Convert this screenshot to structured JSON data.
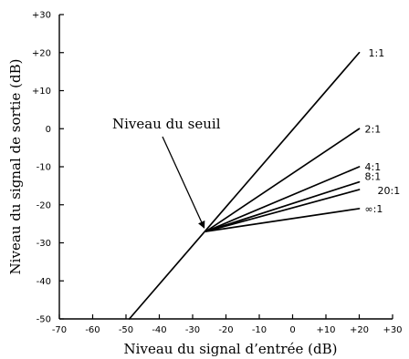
{
  "chart_data": {
    "type": "line",
    "xlabel": "Niveau du signal d’entrée (dB)",
    "ylabel": "Niveau du signal de sortie (dB)",
    "xlim": [
      -70,
      30
    ],
    "ylim": [
      -50,
      30
    ],
    "x_tick_labels": [
      "-70",
      "-60",
      "-50",
      "-40",
      "-30",
      "-20",
      "-10",
      "0",
      "+10",
      "+20",
      "+30"
    ],
    "x_tick_values": [
      -70,
      -60,
      -50,
      -40,
      -30,
      -20,
      -10,
      0,
      10,
      20,
      30
    ],
    "y_tick_labels": [
      "-50",
      "-40",
      "-30",
      "-20",
      "-10",
      "0",
      "+10",
      "+20",
      "+30"
    ],
    "y_tick_values": [
      -50,
      -40,
      -30,
      -20,
      -10,
      0,
      10,
      20,
      30
    ],
    "annotation": {
      "text": "Niveau du seuil",
      "point": [
        -26,
        -27
      ]
    },
    "series": [
      {
        "name": "1:1",
        "x": [
          -49,
          20
        ],
        "y": [
          -50,
          20
        ]
      },
      {
        "name": "2:1",
        "x": [
          -26,
          20
        ],
        "y": [
          -27,
          0
        ]
      },
      {
        "name": "4:1",
        "x": [
          -26,
          20
        ],
        "y": [
          -27,
          -10
        ]
      },
      {
        "name": "8:1",
        "x": [
          -26,
          20
        ],
        "y": [
          -27,
          -14
        ]
      },
      {
        "name": "20:1",
        "x": [
          -26,
          20
        ],
        "y": [
          -27,
          -16
        ]
      },
      {
        "name": "∞:1",
        "x": [
          -26,
          20
        ],
        "y": [
          -27,
          -21
        ]
      }
    ]
  }
}
